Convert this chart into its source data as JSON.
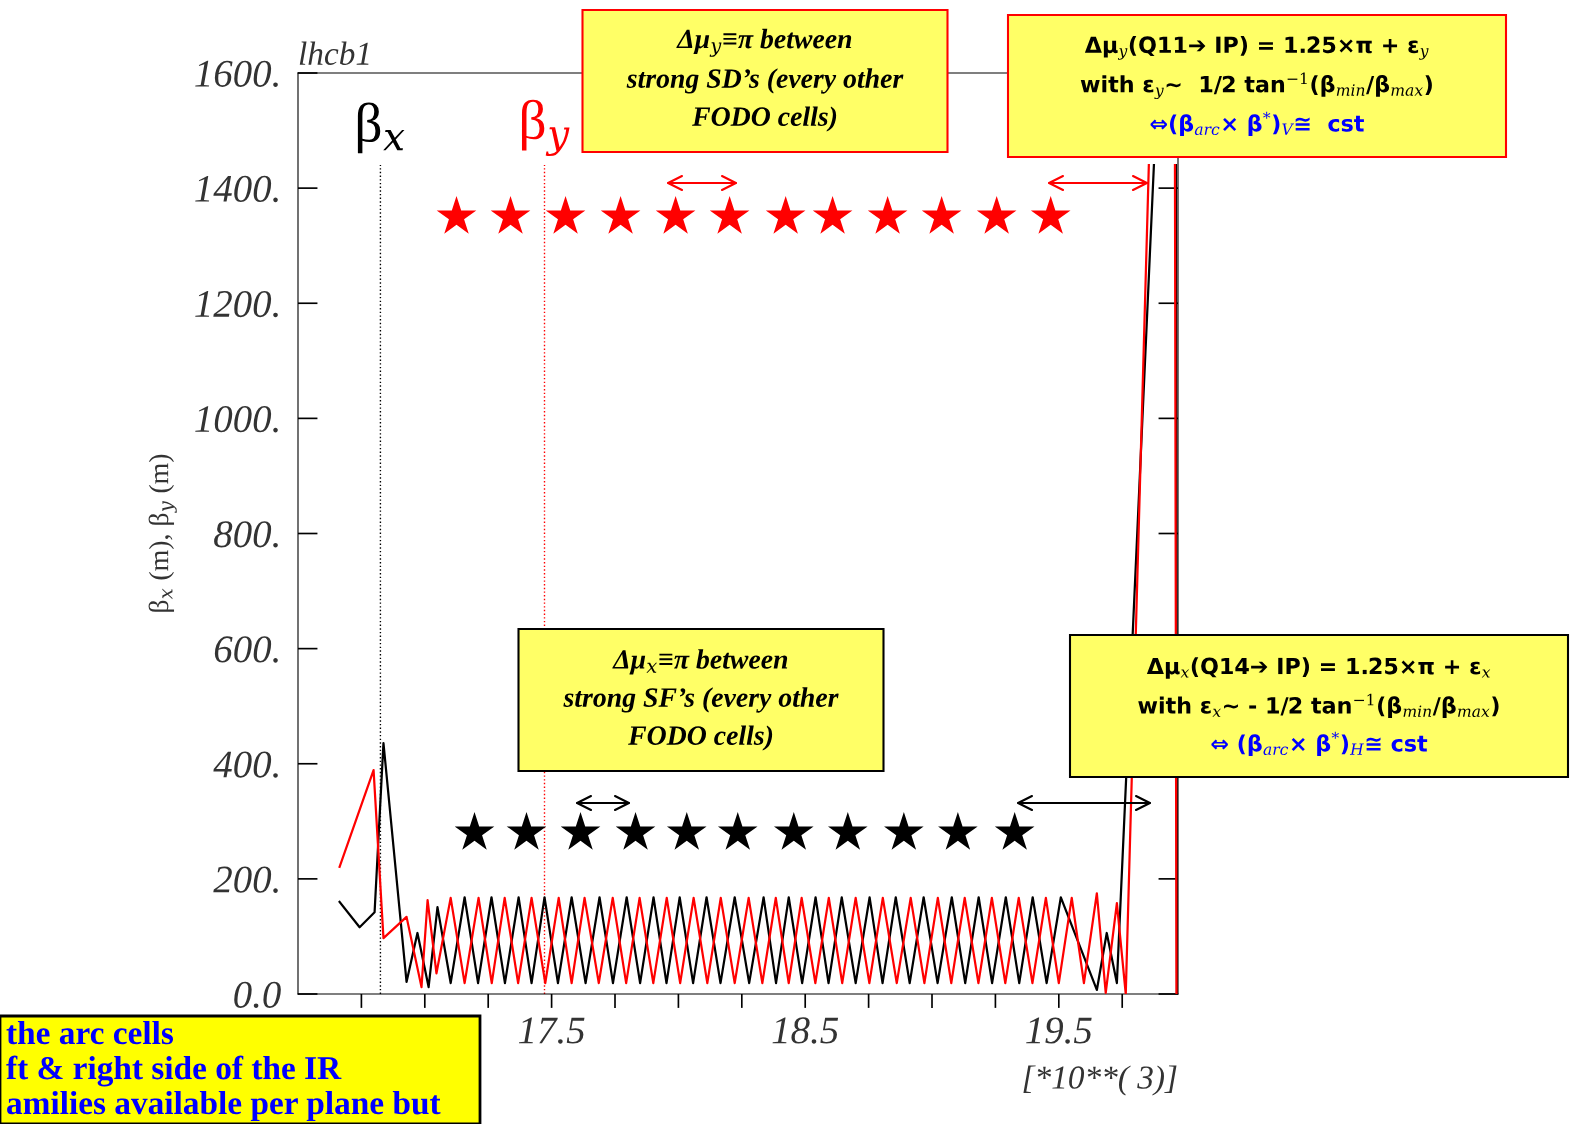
{
  "chart_data": {
    "type": "line",
    "title": "lhcb1",
    "xlabel": "[*10**( 3)]",
    "ylabel": "β$_{x}$ (m), β$_{y}$ (m)",
    "xlim": [
      16.5,
      19.97
    ],
    "ylim": [
      0,
      1600
    ],
    "xticks": [
      {
        "value": 16.75,
        "label": null
      },
      {
        "value": 17.0,
        "label": null
      },
      {
        "value": 17.25,
        "label": null
      },
      {
        "value": 17.5,
        "label": "17.5"
      },
      {
        "value": 17.75,
        "label": null
      },
      {
        "value": 18.0,
        "label": null
      },
      {
        "value": 18.25,
        "label": null
      },
      {
        "value": 18.5,
        "label": "18.5"
      },
      {
        "value": 18.75,
        "label": null
      },
      {
        "value": 19.0,
        "label": null
      },
      {
        "value": 19.25,
        "label": null
      },
      {
        "value": 19.5,
        "label": "19.5"
      },
      {
        "value": 19.75,
        "label": null
      }
    ],
    "yticks": [
      {
        "value": 0,
        "label": "0.0"
      },
      {
        "value": 200,
        "label": "200."
      },
      {
        "value": 400,
        "label": "400."
      },
      {
        "value": 600,
        "label": "600."
      },
      {
        "value": 800,
        "label": "800."
      },
      {
        "value": 1000,
        "label": "1000."
      },
      {
        "value": 1200,
        "label": "1200."
      },
      {
        "value": 1400,
        "label": "1400."
      },
      {
        "value": 1600,
        "label": "1600."
      }
    ],
    "grid": false,
    "legend": false,
    "marker": "none",
    "line_style": "solid",
    "series": [
      {
        "color": "#000000",
        "x": [
          16.664,
          16.743,
          16.802,
          16.837,
          16.928,
          16.971,
          17.015,
          17.05,
          17.102,
          17.157,
          17.21,
          17.263,
          17.316,
          17.37,
          17.421,
          17.472,
          17.525,
          17.579,
          17.634,
          17.689,
          17.742,
          17.796,
          17.849,
          17.902,
          17.953,
          18.005,
          18.058,
          18.111,
          18.166,
          18.222,
          18.279,
          18.336,
          18.385,
          18.435,
          18.488,
          18.541,
          18.592,
          18.644,
          18.699,
          18.754,
          18.805,
          18.857,
          18.912,
          18.967,
          19.022,
          19.078,
          19.131,
          19.184,
          19.237,
          19.291,
          19.344,
          19.397,
          19.452,
          19.508,
          19.65,
          19.689,
          19.729,
          19.875,
          19.92,
          19.962,
          19.966
        ],
        "values": [
          160,
          116,
          142,
          436,
          21,
          106,
          12,
          151,
          19,
          168,
          19,
          168,
          19,
          168,
          19,
          168,
          19,
          168,
          19,
          168,
          19,
          168,
          19,
          168,
          19,
          168,
          19,
          168,
          19,
          168,
          19,
          168,
          19,
          168,
          19,
          168,
          19,
          168,
          19,
          168,
          19,
          168,
          19,
          168,
          19,
          168,
          19,
          168,
          19,
          168,
          19,
          168,
          19,
          168,
          7,
          106,
          19,
          1440,
          null,
          1440,
          0
        ]
      },
      {
        "color": "#ff0000",
        "x": [
          16.664,
          16.798,
          16.837,
          16.928,
          16.987,
          17.011,
          17.046,
          17.102,
          17.157,
          17.212,
          17.264,
          17.315,
          17.368,
          17.421,
          17.475,
          17.528,
          17.579,
          17.63,
          17.686,
          17.741,
          17.794,
          17.847,
          17.901,
          17.954,
          18.007,
          18.06,
          18.114,
          18.167,
          18.222,
          18.277,
          18.331,
          18.384,
          18.435,
          18.486,
          18.54,
          18.593,
          18.646,
          18.699,
          18.753,
          18.806,
          18.861,
          18.916,
          18.97,
          19.023,
          19.076,
          19.129,
          19.183,
          19.236,
          19.289,
          19.342,
          19.396,
          19.449,
          19.5,
          19.551,
          19.599,
          19.65,
          19.685,
          19.729,
          19.764,
          19.855,
          19.91,
          19.958,
          19.964
        ],
        "values": [
          221,
          389,
          97,
          134,
          12,
          163,
          36,
          167,
          19,
          167,
          19,
          167,
          19,
          167,
          19,
          167,
          19,
          167,
          19,
          167,
          19,
          167,
          19,
          167,
          19,
          167,
          19,
          167,
          19,
          167,
          19,
          167,
          19,
          167,
          19,
          167,
          19,
          167,
          19,
          167,
          19,
          167,
          19,
          167,
          19,
          167,
          19,
          167,
          19,
          167,
          19,
          167,
          19,
          167,
          19,
          175,
          2,
          158,
          0,
          1440,
          null,
          1440,
          0
        ]
      },
      {
        "type": "scatter",
        "color": "#ff0000",
        "marker": "star",
        "x": [
          17.125,
          17.338,
          17.555,
          17.772,
          17.989,
          18.202,
          18.423,
          18.608,
          18.825,
          19.038,
          19.255,
          19.468
        ],
        "values": [
          1350,
          1350,
          1350,
          1350,
          1350,
          1350,
          1350,
          1350,
          1350,
          1350,
          1350,
          1350
        ]
      },
      {
        "type": "scatter",
        "color": "#000000",
        "marker": "star",
        "x": [
          17.196,
          17.401,
          17.614,
          17.831,
          18.033,
          18.234,
          18.455,
          18.668,
          18.889,
          19.102,
          19.326
        ],
        "values": [
          280,
          280,
          280,
          280,
          280,
          280,
          280,
          280,
          280,
          280,
          280
        ]
      }
    ],
    "ref_lines": [
      {
        "axis": "x",
        "value": 16.825,
        "label": "β$_{x}$",
        "color": "#000000",
        "line_style": "dotted"
      },
      {
        "axis": "x",
        "value": 17.472,
        "label": "β$_{y}$",
        "color": "#ff0000",
        "line_style": "dotted"
      }
    ],
    "annotations": [
      "Δμ$_{y}$≡π between\nstrong SD’s (every other\nFODO cells)",
      "Δμ$_{y}$(Q11➔ IP) = 1.25×π + ε$_{y}$\nwith ε$_{y}$~  1/2 tan$^{−1}$(β$_{min}$/β$_{max}$)\n⇔(β$_{arc}$× β$^{*}$)$_{V}$≅  cst",
      "Δμ$_{x}$≡π between\nstrong SF’s (every other\nFODO cells)",
      "Δμ$_{x}$(Q14➔ IP) = 1.25×π + ε$_{x}$\nwith ε$_{x}$~ - 1/2 tan$^{−1}$(β$_{min}$/β$_{max}$)\n⇔ (β$_{arc}$× β$^{*}$)$_{H}$≅ cst",
      "the arc cells\nft & right side of the IR\namilies available per plane but"
    ]
  }
}
